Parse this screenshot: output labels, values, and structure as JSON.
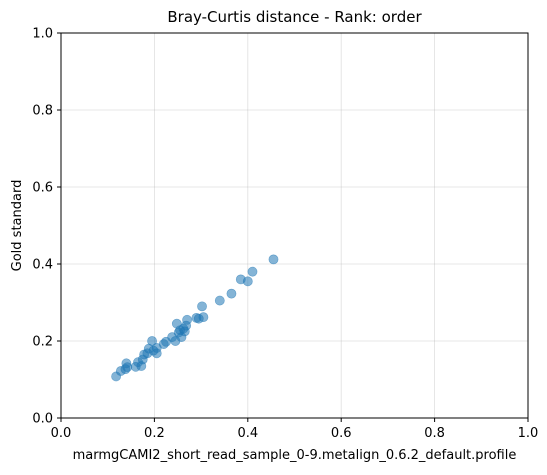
{
  "chart_data": {
    "type": "scatter",
    "title": "Bray-Curtis distance - Rank: order",
    "xlabel": "marmgCAMI2_short_read_sample_0-9.metalign_0.6.2_default.profile",
    "ylabel": "Gold standard",
    "xlim": [
      0.0,
      1.0
    ],
    "ylim": [
      0.0,
      1.0
    ],
    "xticks": [
      "0.0",
      "0.2",
      "0.4",
      "0.6",
      "0.8",
      "1.0"
    ],
    "yticks": [
      "0.0",
      "0.2",
      "0.4",
      "0.6",
      "0.8",
      "1.0"
    ],
    "grid": true,
    "marker_color": "#1f77b4",
    "marker_alpha": 0.55,
    "points": [
      {
        "x": 0.118,
        "y": 0.108
      },
      {
        "x": 0.128,
        "y": 0.122
      },
      {
        "x": 0.138,
        "y": 0.127
      },
      {
        "x": 0.14,
        "y": 0.142
      },
      {
        "x": 0.142,
        "y": 0.132
      },
      {
        "x": 0.16,
        "y": 0.133
      },
      {
        "x": 0.165,
        "y": 0.145
      },
      {
        "x": 0.172,
        "y": 0.135
      },
      {
        "x": 0.175,
        "y": 0.152
      },
      {
        "x": 0.178,
        "y": 0.165
      },
      {
        "x": 0.185,
        "y": 0.168
      },
      {
        "x": 0.188,
        "y": 0.18
      },
      {
        "x": 0.195,
        "y": 0.2
      },
      {
        "x": 0.198,
        "y": 0.175
      },
      {
        "x": 0.205,
        "y": 0.168
      },
      {
        "x": 0.205,
        "y": 0.182
      },
      {
        "x": 0.22,
        "y": 0.192
      },
      {
        "x": 0.225,
        "y": 0.198
      },
      {
        "x": 0.238,
        "y": 0.21
      },
      {
        "x": 0.245,
        "y": 0.2
      },
      {
        "x": 0.248,
        "y": 0.245
      },
      {
        "x": 0.252,
        "y": 0.222
      },
      {
        "x": 0.255,
        "y": 0.228
      },
      {
        "x": 0.258,
        "y": 0.21
      },
      {
        "x": 0.262,
        "y": 0.232
      },
      {
        "x": 0.265,
        "y": 0.225
      },
      {
        "x": 0.268,
        "y": 0.24
      },
      {
        "x": 0.27,
        "y": 0.255
      },
      {
        "x": 0.29,
        "y": 0.26
      },
      {
        "x": 0.295,
        "y": 0.258
      },
      {
        "x": 0.302,
        "y": 0.29
      },
      {
        "x": 0.305,
        "y": 0.262
      },
      {
        "x": 0.34,
        "y": 0.305
      },
      {
        "x": 0.365,
        "y": 0.323
      },
      {
        "x": 0.385,
        "y": 0.36
      },
      {
        "x": 0.4,
        "y": 0.355
      },
      {
        "x": 0.41,
        "y": 0.38
      },
      {
        "x": 0.455,
        "y": 0.412
      }
    ]
  }
}
